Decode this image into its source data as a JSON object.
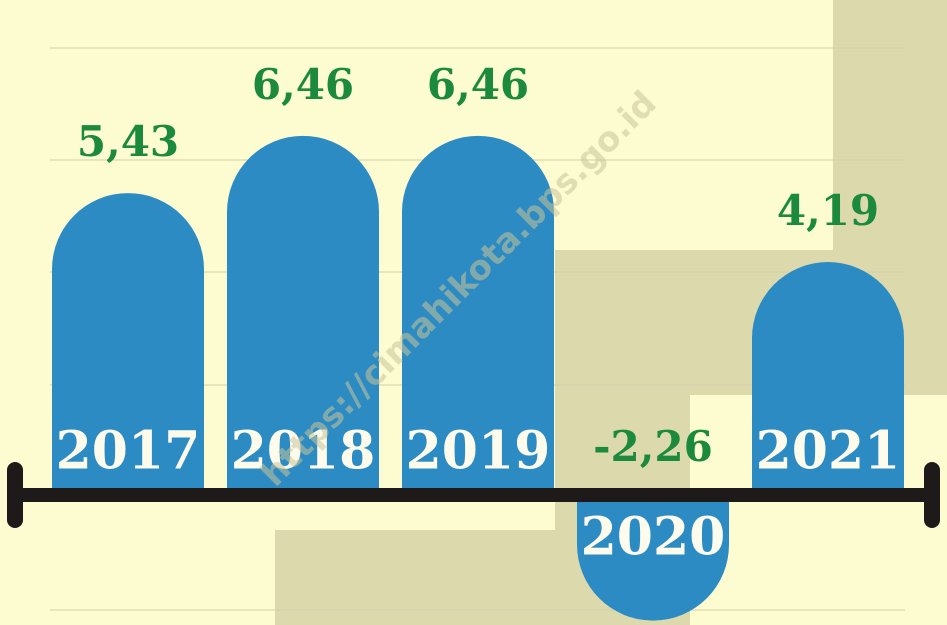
{
  "chart_data": {
    "type": "bar",
    "categories": [
      "2017",
      "2018",
      "2019",
      "2020",
      "2021"
    ],
    "values": [
      5.43,
      6.46,
      6.46,
      -2.26,
      4.19
    ],
    "value_labels": [
      "5,43",
      "6,46",
      "6,46",
      "-2,26",
      "4,19"
    ],
    "color": "#2c8bc2",
    "label_color": "#1c8a3c",
    "watermark": "https://cimahikota.bps.go.id"
  }
}
